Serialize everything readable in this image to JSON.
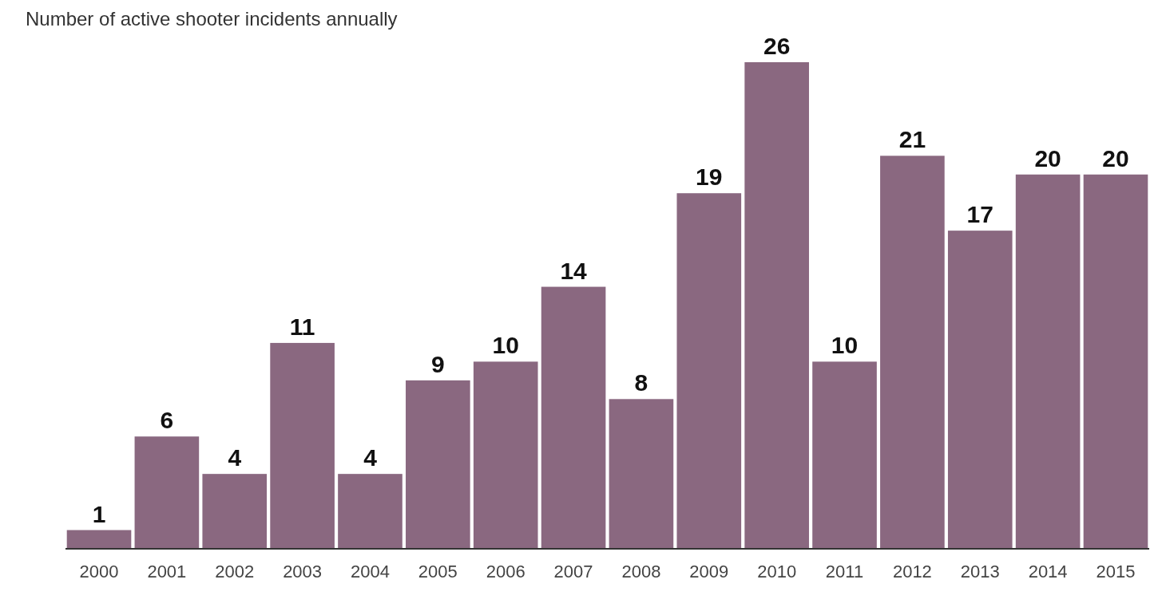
{
  "chart_data": {
    "type": "bar",
    "title": "Number of active shooter incidents annually",
    "categories": [
      "2000",
      "2001",
      "2002",
      "2003",
      "2004",
      "2005",
      "2006",
      "2007",
      "2008",
      "2009",
      "2010",
      "2011",
      "2012",
      "2013",
      "2014",
      "2015"
    ],
    "values": [
      1,
      6,
      4,
      11,
      4,
      9,
      10,
      14,
      8,
      19,
      26,
      10,
      21,
      17,
      20,
      20
    ],
    "color": "#8a6880",
    "data_labels": true
  }
}
